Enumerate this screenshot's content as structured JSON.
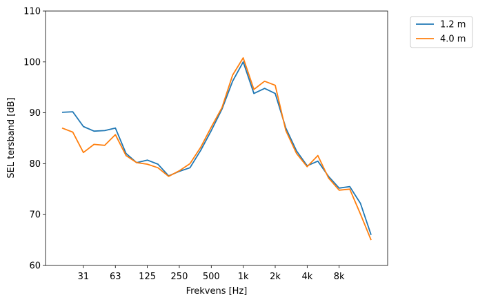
{
  "chart_data": {
    "type": "line",
    "xlabel": "Frekvens [Hz]",
    "ylabel": "SEL tersband [dB]",
    "ylim": [
      60,
      110
    ],
    "yticks": [
      60,
      70,
      80,
      90,
      100,
      110
    ],
    "xticks": [
      {
        "label": "31",
        "index": 2
      },
      {
        "label": "63",
        "index": 5
      },
      {
        "label": "125",
        "index": 8
      },
      {
        "label": "250",
        "index": 11
      },
      {
        "label": "500",
        "index": 14
      },
      {
        "label": "1k",
        "index": 17
      },
      {
        "label": "2k",
        "index": 20
      },
      {
        "label": "4k",
        "index": 23
      },
      {
        "label": "8k",
        "index": 26
      }
    ],
    "x_scale": "log (third-octave bands)",
    "grid": false,
    "legend_position": "outside-top-right",
    "series": [
      {
        "name": "1.2 m",
        "color": "#1f77b4",
        "values": [
          90.1,
          90.2,
          87.3,
          86.4,
          86.5,
          87.0,
          82.0,
          80.2,
          80.7,
          79.9,
          77.6,
          78.5,
          79.2,
          82.6,
          86.5,
          90.7,
          96.2,
          100.0,
          93.8,
          94.8,
          93.8,
          87.0,
          82.5,
          79.6,
          80.5,
          77.5,
          75.2,
          75.5,
          72.2,
          66.0
        ]
      },
      {
        "name": "4.0 m",
        "color": "#ff7f0e",
        "values": [
          87.0,
          86.2,
          82.2,
          83.8,
          83.6,
          85.7,
          81.6,
          80.2,
          79.9,
          79.2,
          77.5,
          78.6,
          80.0,
          83.2,
          87.2,
          91.0,
          97.4,
          100.8,
          94.6,
          96.2,
          95.4,
          86.5,
          82.0,
          79.4,
          81.6,
          77.2,
          74.8,
          75.0,
          70.1,
          65.0
        ]
      }
    ]
  }
}
